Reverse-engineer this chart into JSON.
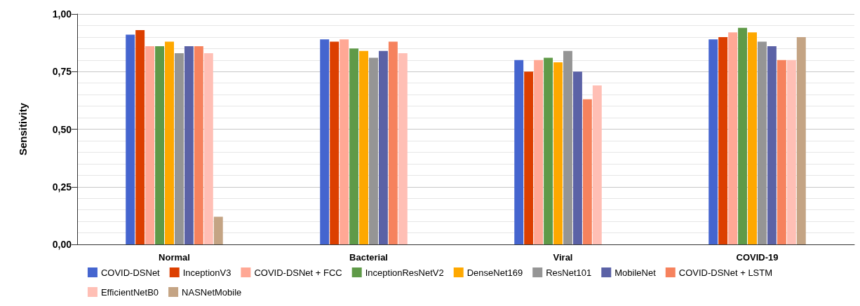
{
  "chart_data": {
    "type": "bar",
    "ylabel": "Sensitivity",
    "categories": [
      "Normal",
      "Bacterial",
      "Viral",
      "COVID-19"
    ],
    "series": [
      {
        "name": "COVID-DSNet",
        "color": "#4565cf",
        "values": [
          0.91,
          0.89,
          0.8,
          0.89
        ]
      },
      {
        "name": "InceptionV3",
        "color": "#dc3f00",
        "values": [
          0.93,
          0.88,
          0.75,
          0.9
        ]
      },
      {
        "name": "COVID-DSNet + FCC",
        "color": "#ffa895",
        "values": [
          0.86,
          0.89,
          0.8,
          0.92
        ]
      },
      {
        "name": "InceptionResNetV2",
        "color": "#5f9a48",
        "values": [
          0.86,
          0.85,
          0.81,
          0.94
        ]
      },
      {
        "name": "DenseNet169",
        "color": "#fea800",
        "values": [
          0.88,
          0.84,
          0.79,
          0.92
        ]
      },
      {
        "name": "ResNet101",
        "color": "#959595",
        "values": [
          0.83,
          0.81,
          0.84,
          0.88
        ]
      },
      {
        "name": "MobileNet",
        "color": "#5b62a6",
        "values": [
          0.86,
          0.84,
          0.75,
          0.86
        ]
      },
      {
        "name": "COVID-DSNet + LSTM",
        "color": "#f6825d",
        "values": [
          0.86,
          0.88,
          0.63,
          0.8
        ]
      },
      {
        "name": "EfficientNetB0",
        "color": "#ffbfb5",
        "values": [
          0.83,
          0.83,
          0.69,
          0.8
        ]
      },
      {
        "name": "NASNetMobile",
        "color": "#c4a484",
        "values": [
          0.12,
          0,
          0,
          0.9
        ]
      }
    ],
    "ylim": [
      0,
      1
    ],
    "yticks": [
      {
        "value": 0,
        "label": "0,00"
      },
      {
        "value": 0.25,
        "label": "0,25"
      },
      {
        "value": 0.5,
        "label": "0,50"
      },
      {
        "value": 0.75,
        "label": "0,75"
      },
      {
        "value": 1,
        "label": "1,00"
      }
    ],
    "grid": "y",
    "legend": "bottom"
  }
}
